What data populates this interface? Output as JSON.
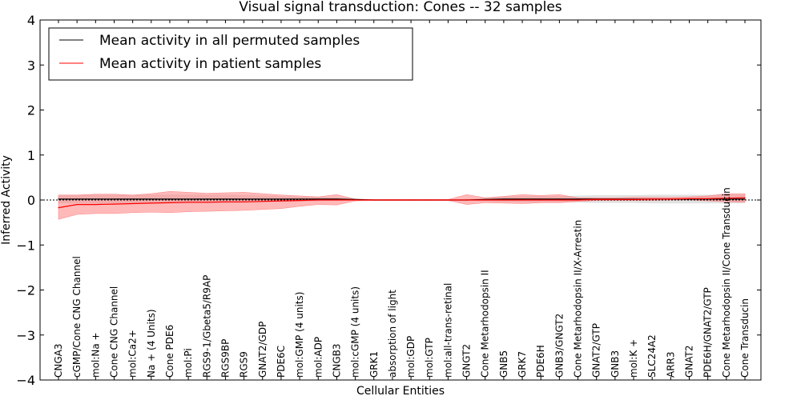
{
  "chart_data": {
    "type": "line",
    "title": "Visual signal transduction: Cones -- 32 samples",
    "xlabel": "Cellular Entities",
    "ylabel": "Inferred Activity",
    "ylim": [
      -4,
      4
    ],
    "yticks": [
      4,
      3,
      2,
      1,
      0,
      -1,
      -2,
      -3,
      -4
    ],
    "ytick_labels": [
      "4",
      "3",
      "2",
      "1",
      "0",
      "−1",
      "−2",
      "−3",
      "−4"
    ],
    "legend_position": "top-left",
    "categories": [
      "CNGA3",
      "cGMP/Cone CNG Channel",
      "mol:Na +",
      "Cone CNG Channel",
      "mol:Ca2+",
      "Na + (4 Units)",
      "Cone PDE6",
      "mol:Pi",
      "RGS9-1/Gbeta5/R9AP",
      "RGS9BP",
      "RGS9",
      "GNAT2/GDP",
      "PDE6C",
      "mol:GMP (4 units)",
      "mol:ADP",
      "CNGB3",
      "mol:cGMP (4 units)",
      "GRK1",
      "absorption of light",
      "mol:GDP",
      "mol:GTP",
      "mol:all-trans-retinal",
      "GNGT2",
      "Cone Metarhodopsin II",
      "GNB5",
      "GRK7",
      "PDE6H",
      "GNB3/GNGT2",
      "Cone Metarhodopsin II/X-Arrestin",
      "GNAT2/GTP",
      "GNB3",
      "mol:K +",
      "SLC24A2",
      "ARR3",
      "GNAT2",
      "PDE6H/GNAT2/GTP",
      "Cone Metarhodopsin II/Cone Transducin",
      "Cone Transducin"
    ],
    "series": [
      {
        "name": "Mean activity in all permuted samples",
        "color": "#000000",
        "band_color": "#d8d8d8",
        "values": [
          0.02,
          0.02,
          0.02,
          0.02,
          0.02,
          0.02,
          0.02,
          0.02,
          0.02,
          0.02,
          0.02,
          0.02,
          0.02,
          0.02,
          0.02,
          0.02,
          0.01,
          0.0,
          0.0,
          0.0,
          0.0,
          0.0,
          0.0,
          0.01,
          0.02,
          0.02,
          0.02,
          0.02,
          0.02,
          0.02,
          0.02,
          0.02,
          0.02,
          0.02,
          0.02,
          0.02,
          0.02,
          0.02
        ],
        "lower": [
          -0.07,
          -0.07,
          -0.07,
          -0.07,
          -0.07,
          -0.07,
          -0.07,
          -0.07,
          -0.07,
          -0.07,
          -0.06,
          -0.05,
          -0.04,
          -0.03,
          -0.02,
          -0.01,
          0.0,
          -0.01,
          -0.01,
          -0.01,
          -0.01,
          -0.01,
          -0.01,
          -0.02,
          -0.03,
          -0.04,
          -0.04,
          -0.04,
          -0.05,
          -0.06,
          -0.06,
          -0.06,
          -0.07,
          -0.07,
          -0.07,
          -0.07,
          -0.07,
          -0.07
        ],
        "upper": [
          0.11,
          0.11,
          0.11,
          0.11,
          0.11,
          0.11,
          0.11,
          0.11,
          0.11,
          0.11,
          0.1,
          0.09,
          0.08,
          0.07,
          0.06,
          0.04,
          0.02,
          0.01,
          0.01,
          0.01,
          0.01,
          0.01,
          0.01,
          0.04,
          0.07,
          0.08,
          0.08,
          0.08,
          0.09,
          0.1,
          0.1,
          0.1,
          0.11,
          0.11,
          0.11,
          0.11,
          0.11,
          0.11
        ]
      },
      {
        "name": "Mean activity in patient samples",
        "color": "#ff0000",
        "band_color": "#ff8080",
        "values": [
          -0.17,
          -0.1,
          -0.1,
          -0.09,
          -0.08,
          -0.07,
          -0.06,
          -0.05,
          -0.05,
          -0.04,
          -0.04,
          -0.03,
          -0.02,
          -0.01,
          0.0,
          0.0,
          0.0,
          0.0,
          0.0,
          0.0,
          0.0,
          0.0,
          0.0,
          0.0,
          0.0,
          0.0,
          0.0,
          0.0,
          0.0,
          0.01,
          0.01,
          0.01,
          0.02,
          0.02,
          0.03,
          0.03,
          0.04,
          0.05
        ],
        "lower": [
          -0.43,
          -0.32,
          -0.3,
          -0.3,
          -0.28,
          -0.27,
          -0.28,
          -0.26,
          -0.25,
          -0.24,
          -0.23,
          -0.21,
          -0.19,
          -0.14,
          -0.1,
          -0.11,
          -0.02,
          -0.01,
          -0.01,
          -0.01,
          -0.01,
          -0.01,
          -0.1,
          -0.06,
          -0.07,
          -0.08,
          -0.06,
          -0.06,
          -0.03,
          -0.01,
          -0.01,
          -0.01,
          -0.01,
          0.0,
          0.0,
          -0.02,
          -0.04,
          -0.05
        ],
        "upper": [
          0.11,
          0.11,
          0.13,
          0.13,
          0.11,
          0.14,
          0.19,
          0.17,
          0.15,
          0.16,
          0.17,
          0.14,
          0.11,
          0.09,
          0.07,
          0.12,
          0.02,
          0.01,
          0.01,
          0.01,
          0.01,
          0.01,
          0.12,
          0.05,
          0.08,
          0.12,
          0.1,
          0.12,
          0.05,
          0.05,
          0.05,
          0.06,
          0.06,
          0.06,
          0.07,
          0.09,
          0.14,
          0.14
        ]
      }
    ]
  }
}
